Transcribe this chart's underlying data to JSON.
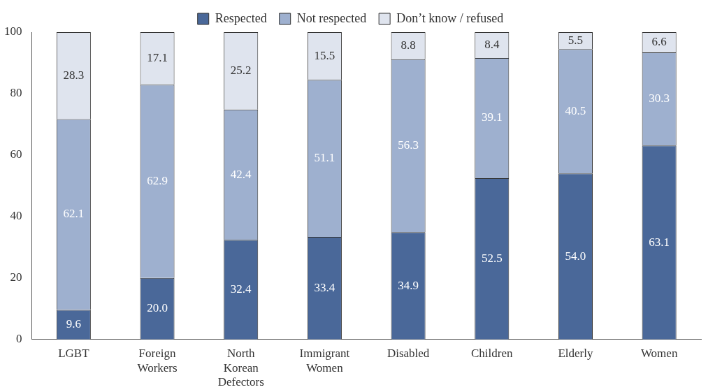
{
  "chart_data": {
    "type": "bar",
    "stacked": true,
    "legend": "top",
    "categories": [
      "LGBT",
      "Foreign Workers",
      "North Korean Defectors",
      "Immigrant Women",
      "Disabled",
      "Children",
      "Elderly",
      "Women"
    ],
    "series": [
      {
        "name": "Respected",
        "color": "#4a6899",
        "values": [
          9.6,
          20.0,
          32.4,
          33.4,
          34.9,
          52.5,
          54.0,
          63.1
        ],
        "value_labels": [
          "9.6",
          "20.0",
          "32.4",
          "33.4",
          "34.9",
          "52.5",
          "54.0",
          "63.1"
        ]
      },
      {
        "name": "Not respected",
        "color": "#9eb0cf",
        "values": [
          62.1,
          62.9,
          42.4,
          51.1,
          56.3,
          39.1,
          40.5,
          30.3
        ],
        "value_labels": [
          "62.1",
          "62.9",
          "42.4",
          "51.1",
          "56.3",
          "39.1",
          "40.5",
          "30.3"
        ]
      },
      {
        "name": "Don’t know / refused",
        "color": "#dfe4ee",
        "values": [
          28.3,
          17.1,
          25.2,
          15.5,
          8.8,
          8.4,
          5.5,
          6.6
        ],
        "value_labels": [
          "28.3",
          "17.1",
          "25.2",
          "15.5",
          "8.8",
          "8.4",
          "5.5",
          "6.6"
        ]
      }
    ],
    "ylim": [
      0,
      100
    ],
    "yticks": [
      0,
      20,
      40,
      60,
      80,
      100
    ],
    "grid": false
  }
}
